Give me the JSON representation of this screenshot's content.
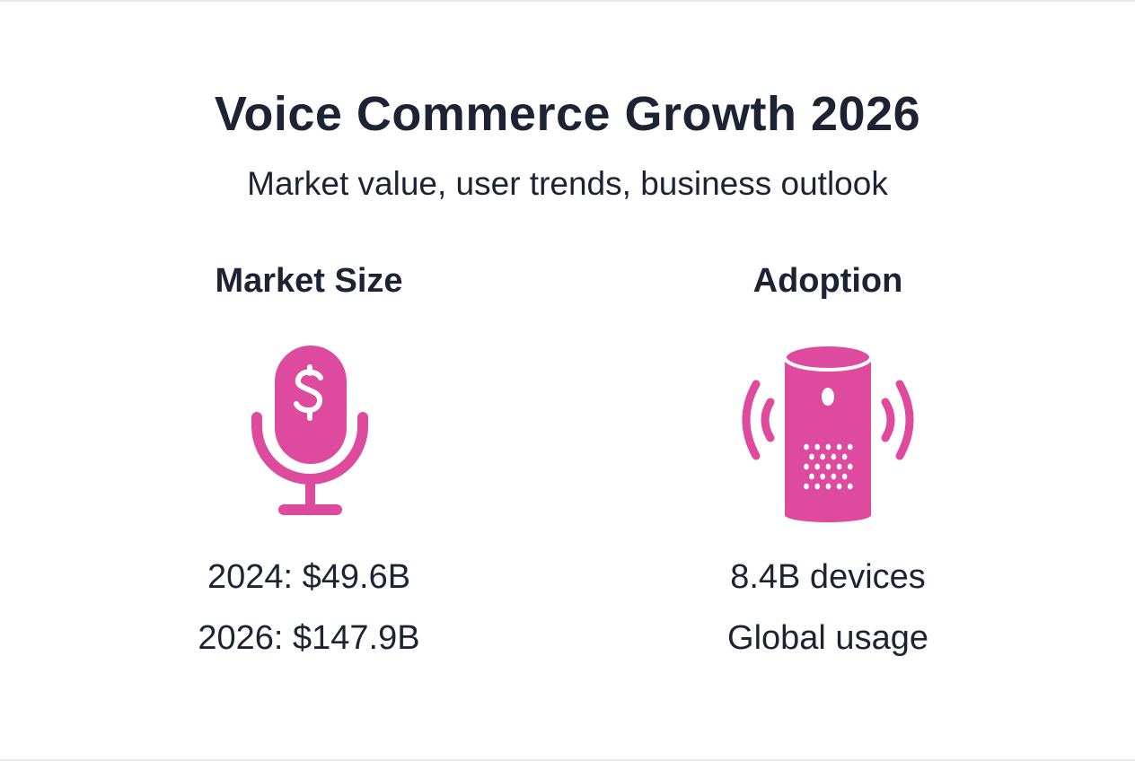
{
  "title": "Voice Commerce Growth 2026",
  "subtitle": "Market value, user trends, business outlook",
  "accent_color": "#DE4A9E",
  "sections": [
    {
      "heading": "Market Size",
      "icon": "microphone-dollar-icon",
      "lines": [
        "2024: $49.6B",
        "2026: $147.9B"
      ]
    },
    {
      "heading": "Adoption",
      "icon": "smart-speaker-icon",
      "lines": [
        "8.4B devices",
        "Global usage"
      ]
    }
  ]
}
